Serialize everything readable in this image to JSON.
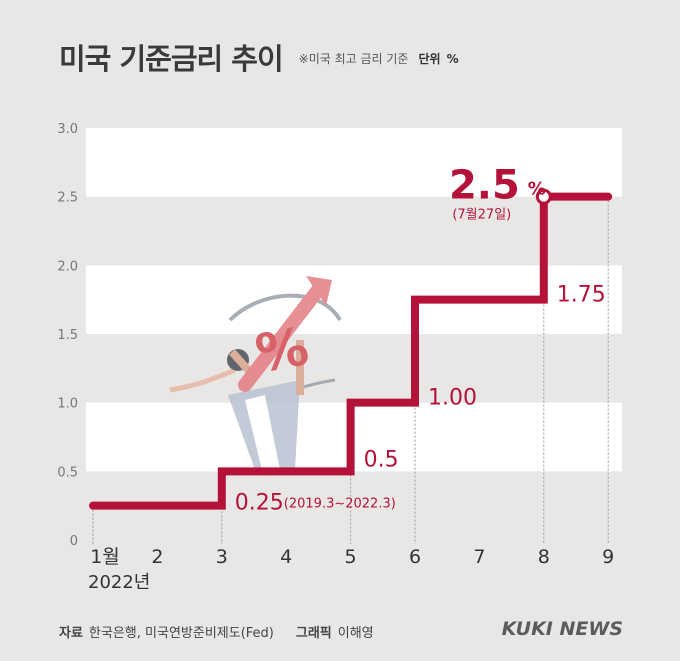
{
  "header": {
    "title": "미국 기준금리 추이",
    "note": "※미국 최고 금리 기준",
    "unit_label": "단위",
    "unit": "%"
  },
  "chart_data": {
    "type": "line",
    "step": true,
    "x_ticks": [
      "1월",
      "2",
      "3",
      "4",
      "5",
      "6",
      "7",
      "8",
      "9"
    ],
    "year_label": "2022년",
    "y_ticks": [
      "0",
      "0.5",
      "1.0",
      "1.5",
      "2.0",
      "2.5",
      "3.0"
    ],
    "ylim": [
      0,
      3.0
    ],
    "series": [
      {
        "x": [
          1,
          3,
          5,
          6,
          8,
          9
        ],
        "values": [
          0.25,
          0.5,
          1.0,
          1.75,
          2.5,
          2.5
        ]
      }
    ],
    "annotations": [
      {
        "text": "0.25",
        "subtext": "(2019.3~2022.3)",
        "x": 3,
        "y": 0.25
      },
      {
        "text": "0.5",
        "x": 5,
        "y": 0.5
      },
      {
        "text": "1.00",
        "x": 6,
        "y": 1.0
      },
      {
        "text": "1.75",
        "x": 8,
        "y": 1.75
      },
      {
        "text": "2.5",
        "suffix": "%",
        "subtext": "(7월27일)",
        "x": 8,
        "y": 2.5
      }
    ],
    "grid": "horizontal bands",
    "line_color": "#b5123a",
    "colors": {
      "band_light": "#ffffff",
      "band_dark": "#e9e7e5"
    }
  },
  "footer": {
    "source_label": "자료",
    "source": "한국은행, 미국연방준비제도(Fed)",
    "graphic_label": "그래픽",
    "graphic": "이해영",
    "logo": "KUKI NEWS"
  }
}
